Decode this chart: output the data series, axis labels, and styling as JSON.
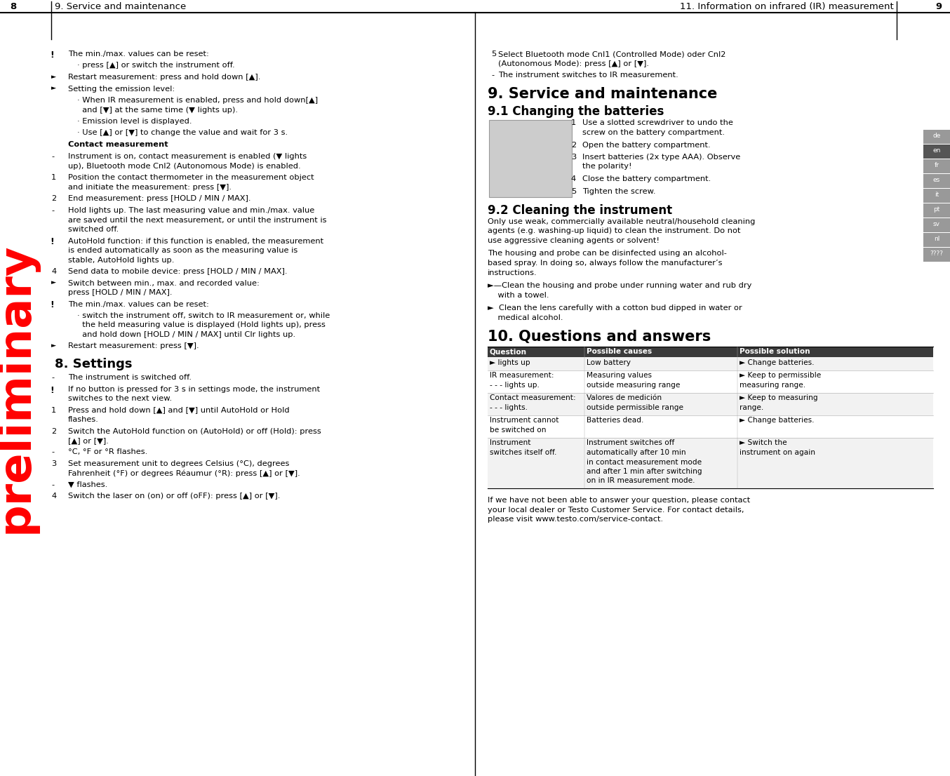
{
  "background_color": "#ffffff",
  "left_header_page": "8",
  "left_header_text": "9. Service and maintenance",
  "right_header_text": "11. Information on infrared (IR) measurement",
  "right_header_page": "9",
  "preliminary_text": "preliminary",
  "left_column": [
    {
      "type": "note",
      "text": "The min./max. values can be reset:"
    },
    {
      "type": "sub",
      "text": "· press [▲] or switch the instrument off."
    },
    {
      "type": "bullet",
      "text": "Restart measurement: press and hold down [▲]."
    },
    {
      "type": "bullet",
      "text": "Setting the emission level:"
    },
    {
      "type": "sub",
      "text": "· When IR measurement is enabled, press and hold down[▲]\n  and [▼] at the same time (▼ lights up)."
    },
    {
      "type": "sub",
      "text": "· Emission level is displayed."
    },
    {
      "type": "sub",
      "text": "· Use [▲] or [▼] to change the value and wait for 3 s."
    },
    {
      "type": "bold_label",
      "text": "Contact measurement"
    },
    {
      "type": "dash",
      "text": "Instrument is on, contact measurement is enabled (▼ lights\nup), Bluetooth mode Cnl2 (Autonomous Mode) is enabled."
    },
    {
      "type": "numbered",
      "num": "1",
      "text": "Position the contact thermometer in the measurement object\nand initiate the measurement: press [▼]."
    },
    {
      "type": "numbered",
      "num": "2",
      "text": "End measurement: press [HOLD / MIN / MAX]."
    },
    {
      "type": "dash",
      "text": "Hold lights up. The last measuring value and min./max. value\nare saved until the next measurement, or until the instrument is\nswitched off."
    },
    {
      "type": "note",
      "text": "AutoHold function: if this function is enabled, the measurement\nis ended automatically as soon as the measuring value is\nstable, AutoHold lights up."
    },
    {
      "type": "numbered",
      "num": "4",
      "text": "Send data to mobile device: press [HOLD / MIN / MAX]."
    },
    {
      "type": "bullet",
      "text": "Switch between min., max. and recorded value:\npress [HOLD / MIN / MAX]."
    },
    {
      "type": "note",
      "text": "The min./max. values can be reset:"
    },
    {
      "type": "sub",
      "text": "· switch the instrument off, switch to IR measurement or, while\n  the held measuring value is displayed (Hold lights up), press\n  and hold down [HOLD / MIN / MAX] until Clr lights up."
    },
    {
      "type": "bullet",
      "text": "Restart measurement: press [▼]."
    },
    {
      "type": "section_header",
      "text": "8. Settings"
    },
    {
      "type": "dash",
      "text": "The instrument is switched off."
    },
    {
      "type": "note",
      "text": "If no button is pressed for 3 s in settings mode, the instrument\nswitches to the next view."
    },
    {
      "type": "numbered",
      "num": "1",
      "text": "Press and hold down [▲] and [▼] until AutoHold or Hold\nflashes."
    },
    {
      "type": "numbered",
      "num": "2",
      "text": "Switch the AutoHold function on (AutoHold) or off (Hold): press\n[▲] or [▼]."
    },
    {
      "type": "dash",
      "text": "°C, °F or °R flashes."
    },
    {
      "type": "numbered",
      "num": "3",
      "text": "Set measurement unit to degrees Celsius (°C), degrees\nFahrenheit (°F) or degrees Réaumur (°R): press [▲] or [▼]."
    },
    {
      "type": "dash",
      "text": "▼ flashes."
    },
    {
      "type": "numbered",
      "num": "4",
      "text": "Switch the laser on (on) or off (oFF): press [▲] or [▼]."
    }
  ],
  "right_column_top": [
    {
      "type": "numbered",
      "num": "5",
      "text": "Select Bluetooth mode Cnl1 (Controlled Mode) oder Cnl2\n(Autonomous Mode): press [▲] or [▼]."
    },
    {
      "type": "dash",
      "text": "The instrument switches to IR measurement."
    }
  ],
  "right_section1_header": "9. Service and maintenance",
  "right_section1_1_header": "9.1 Changing the batteries",
  "right_section1_1_steps": [
    "Use a slotted screwdriver to undo the\nscrew on the battery compartment.",
    "Open the battery compartment.",
    "Insert batteries (2x type AAA). Observe\nthe polarity!",
    "Close the battery compartment.",
    "Tighten the screw."
  ],
  "right_section1_2_header": "9.2 Cleaning the instrument",
  "right_section1_2_text": [
    "Only use weak, commercially available neutral/household cleaning\nagents (e.g. washing-up liquid) to clean the instrument. Do not\nuse aggressive cleaning agents or solvent!",
    "The housing and probe can be disinfected using an alcohol-\nbased spray. In doing so, always follow the manufacturer’s\ninstructions.",
    "►—Clean the housing and probe under running water and rub dry\n    with a towel.",
    "►  Clean the lens carefully with a cotton bud dipped in water or\n    medical alcohol."
  ],
  "right_section2_header": "10. Questions and answers",
  "table_headers": [
    "Question",
    "Possible causes",
    "Possible solution"
  ],
  "table_rows": [
    [
      "► lights up",
      "Low battery",
      "► Change batteries."
    ],
    [
      "IR measurement:\n- - - lights up.",
      "Measuring values\noutside measuring range",
      "► Keep to permissible\nmeasuring range."
    ],
    [
      "Contact measurement:\n- - - lights.",
      "Valores de medición\noutside permissible range",
      "► Keep to measuring\nrange."
    ],
    [
      "Instrument cannot\nbe switched on",
      "Batteries dead.",
      "► Change batteries."
    ],
    [
      "Instrument\nswitches itself off.",
      "Instrument switches off\nautomatically after 10 min\nin contact measurement mode\nand after 1 min after switching\non in IR measurement mode.",
      "► Switch the\ninstrument on again"
    ]
  ],
  "footer_text": "If we have not been able to answer your question, please contact\nyour local dealer or Testo Customer Service. For contact details,\nplease visit www.testo.com/service-contact.",
  "lang_bar": [
    "de",
    "en",
    "fr",
    "es",
    "it",
    "pt",
    "sv",
    "nl",
    "????"
  ],
  "lang_highlight": "en"
}
